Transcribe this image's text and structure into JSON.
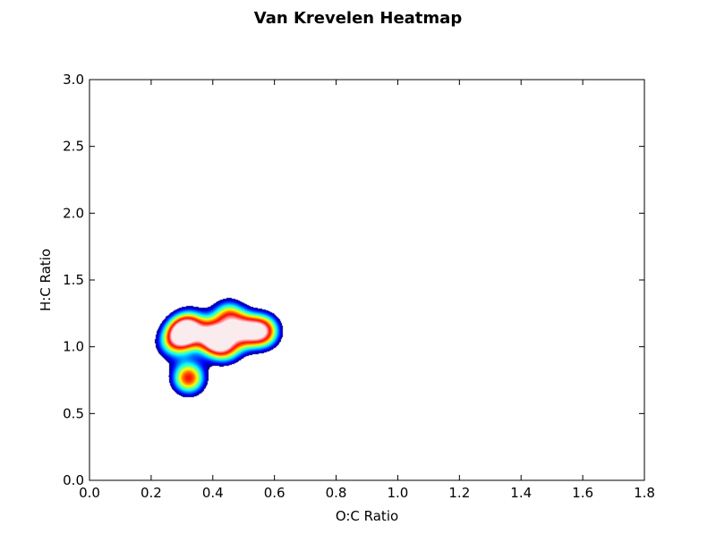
{
  "chart_data": {
    "type": "heatmap",
    "title": "Van Krevelen Heatmap",
    "xlabel": "O:C Ratio",
    "ylabel": "H:C Ratio",
    "xlim": [
      0.0,
      1.8
    ],
    "ylim": [
      0.0,
      3.0
    ],
    "xticks": [
      "0.0",
      "0.2",
      "0.4",
      "0.6",
      "0.8",
      "1.0",
      "1.2",
      "1.4",
      "1.6",
      "1.8"
    ],
    "yticks": [
      "0.0",
      "0.5",
      "1.0",
      "1.5",
      "2.0",
      "2.5",
      "3.0"
    ],
    "grid": false,
    "colormap": [
      "#00007f",
      "#0000ff",
      "#007fff",
      "#00ffff",
      "#7fff7f",
      "#ffff00",
      "#ff7f00",
      "#ff0000",
      "#ffffff"
    ],
    "hotspots": [
      {
        "x": 0.26,
        "y": 1.02,
        "intensity": 0.3
      },
      {
        "x": 0.3,
        "y": 1.1,
        "intensity": 1.0
      },
      {
        "x": 0.33,
        "y": 1.17,
        "intensity": 0.45
      },
      {
        "x": 0.4,
        "y": 1.07,
        "intensity": 0.95
      },
      {
        "x": 0.44,
        "y": 1.0,
        "intensity": 0.55
      },
      {
        "x": 0.45,
        "y": 1.23,
        "intensity": 0.6
      },
      {
        "x": 0.5,
        "y": 1.12,
        "intensity": 0.7
      },
      {
        "x": 0.56,
        "y": 1.12,
        "intensity": 0.85
      },
      {
        "x": 0.32,
        "y": 0.77,
        "intensity": 0.75
      }
    ]
  }
}
